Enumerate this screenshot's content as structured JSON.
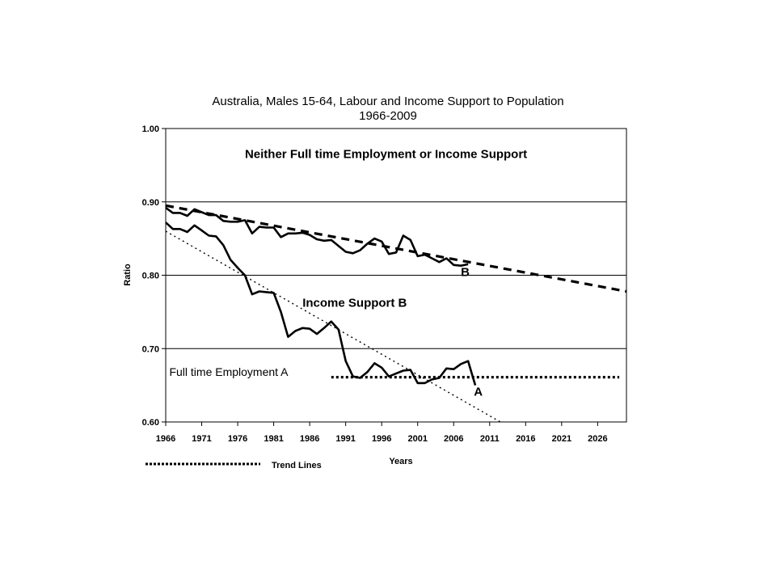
{
  "chart_data": {
    "type": "line",
    "title": "Australia,  Males 15-64, Labour and Income Support to Population",
    "subtitle": "1966-2009",
    "xlabel": "Years",
    "ylabel": "Ratio",
    "xlim": [
      1966,
      2030
    ],
    "ylim": [
      0.6,
      1.0
    ],
    "x_ticks": [
      1966,
      1971,
      1976,
      1981,
      1986,
      1991,
      1996,
      2001,
      2006,
      2011,
      2016,
      2021,
      2026
    ],
    "y_ticks": [
      0.6,
      0.7,
      0.8,
      0.9,
      1.0
    ],
    "y_tick_labels": [
      "0.60",
      "0.70",
      "0.80",
      "0.90",
      "1.00"
    ],
    "grid": "horizontal",
    "series": [
      {
        "name": "B",
        "style": "solid",
        "x": [
          1966,
          1967,
          1968,
          1969,
          1970,
          1971,
          1972,
          1973,
          1974,
          1975,
          1976,
          1977,
          1978,
          1979,
          1980,
          1981,
          1982,
          1983,
          1984,
          1985,
          1986,
          1987,
          1988,
          1989,
          1990,
          1991,
          1992,
          1993,
          1994,
          1995,
          1996,
          1997,
          1998,
          1999,
          2000,
          2001,
          2002,
          2003,
          2004,
          2005,
          2006,
          2007,
          2008
        ],
        "values": [
          0.892,
          0.885,
          0.885,
          0.881,
          0.89,
          0.886,
          0.882,
          0.882,
          0.874,
          0.873,
          0.873,
          0.875,
          0.857,
          0.866,
          0.865,
          0.865,
          0.852,
          0.857,
          0.857,
          0.858,
          0.855,
          0.849,
          0.847,
          0.848,
          0.84,
          0.832,
          0.83,
          0.834,
          0.843,
          0.85,
          0.846,
          0.829,
          0.831,
          0.854,
          0.848,
          0.826,
          0.828,
          0.823,
          0.818,
          0.823,
          0.814,
          0.813,
          0.815
        ]
      },
      {
        "name": "A",
        "style": "solid",
        "x": [
          1966,
          1967,
          1968,
          1969,
          1970,
          1971,
          1972,
          1973,
          1974,
          1975,
          1976,
          1977,
          1978,
          1979,
          1980,
          1981,
          1982,
          1983,
          1984,
          1985,
          1986,
          1987,
          1988,
          1989,
          1990,
          1991,
          1992,
          1993,
          1994,
          1995,
          1996,
          1997,
          1998,
          1999,
          2000,
          2001,
          2002,
          2003,
          2004,
          2005,
          2006,
          2007,
          2008,
          2009
        ],
        "values": [
          0.872,
          0.863,
          0.863,
          0.859,
          0.868,
          0.861,
          0.854,
          0.853,
          0.841,
          0.821,
          0.81,
          0.8,
          0.774,
          0.778,
          0.777,
          0.776,
          0.75,
          0.716,
          0.724,
          0.728,
          0.727,
          0.72,
          0.728,
          0.737,
          0.726,
          0.683,
          0.662,
          0.66,
          0.668,
          0.68,
          0.674,
          0.662,
          0.666,
          0.67,
          0.671,
          0.653,
          0.653,
          0.658,
          0.66,
          0.673,
          0.672,
          0.679,
          0.683,
          0.65
        ]
      },
      {
        "name": "",
        "style": "dashed",
        "x": [
          1966,
          2030
        ],
        "values": [
          0.895,
          0.778
        ]
      },
      {
        "name": "",
        "style": "dotted",
        "x": [
          1966,
          2012.5
        ],
        "values": [
          0.86,
          0.6
        ]
      },
      {
        "name": "",
        "style": "dotted-bold",
        "x": [
          1989,
          2029
        ],
        "values": [
          0.661,
          0.661
        ]
      }
    ],
    "annotations": [
      {
        "text": "Neither Full time Employment or Income Support",
        "x": 1977,
        "y": 0.96,
        "style": "bold"
      },
      {
        "text": "Income Support B",
        "x": 1985,
        "y": 0.757,
        "style": "bold"
      },
      {
        "text": "Full time Employment A",
        "x": 1966.5,
        "y": 0.663,
        "style": "normal"
      },
      {
        "text": "B",
        "x": 2007,
        "y": 0.799,
        "style": "bold"
      },
      {
        "text": "A",
        "x": 2008.8,
        "y": 0.636,
        "style": "bold"
      }
    ],
    "legend": {
      "label": "Trend Lines",
      "placement": "bottom-left"
    }
  }
}
